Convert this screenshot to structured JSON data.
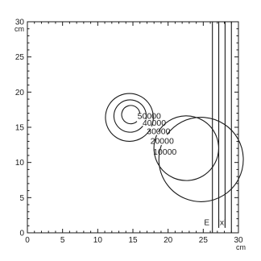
{
  "chart_data": {
    "type": "contour",
    "x_unit": "cm",
    "y_unit": "cm",
    "xlim": [
      0,
      30
    ],
    "ylim": [
      0,
      30
    ],
    "x_ticks": [
      0,
      5,
      10,
      15,
      20,
      25,
      30
    ],
    "y_ticks": [
      0,
      5,
      10,
      15,
      20,
      25,
      30
    ],
    "grid": false,
    "contours": [
      {
        "level": 10000,
        "label": "10000",
        "center": [
          14.2,
          16.0
        ],
        "radius": 6.0,
        "start_deg": -36,
        "end_deg": 340
      },
      {
        "level": 20000,
        "label": "20000",
        "center": [
          14.4,
          16.2
        ],
        "radius": 4.6,
        "start_deg": -30,
        "end_deg": 336
      },
      {
        "level": 30000,
        "label": "30000",
        "center": [
          14.5,
          16.4
        ],
        "radius": 3.4,
        "start_deg": -22,
        "end_deg": 330
      },
      {
        "level": 40000,
        "label": "40000",
        "center": [
          14.6,
          16.6
        ],
        "radius": 2.3,
        "start_deg": -12,
        "end_deg": 322
      },
      {
        "level": 50000,
        "label": "50000",
        "center": [
          14.7,
          16.8
        ],
        "radius": 1.3,
        "start_deg": 5,
        "end_deg": 312
      }
    ],
    "vertical_lines": [
      {
        "x": 26.3,
        "y0": 0,
        "y1": 30
      },
      {
        "x": 27.2,
        "y0": 0.7,
        "y1": 30
      },
      {
        "x": 28.1,
        "y0": 0.7,
        "y1": 30
      },
      {
        "x": 29.0,
        "y0": 0,
        "y1": 30
      }
    ],
    "annotations": [
      {
        "text": "E",
        "x": 25.5,
        "y": 1.1
      },
      {
        "text": "|x|",
        "x": 27.65,
        "y": 1.1
      }
    ]
  }
}
